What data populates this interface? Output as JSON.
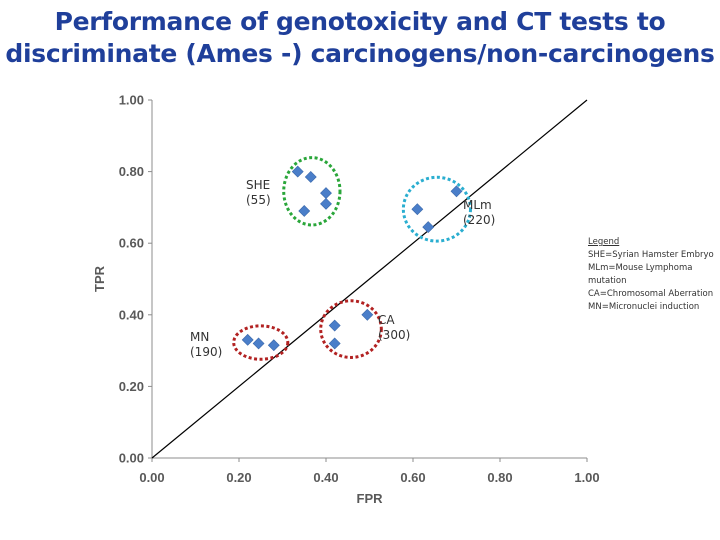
{
  "title": {
    "line1": "Performance of genotoxicity and CT tests to",
    "line2": "discriminate (Ames -) carcinogens/non-carcinogens"
  },
  "chart_data": {
    "type": "scatter",
    "title": "Performance of genotoxicity and CT tests to discriminate (Ames -) carcinogens/non-carcinogens",
    "xlabel": "FPR",
    "ylabel": "TPR",
    "xlim": [
      0,
      1
    ],
    "ylim": [
      0,
      1
    ],
    "xticks": [
      "0.00",
      "0.20",
      "0.40",
      "0.60",
      "0.80",
      "1.00"
    ],
    "yticks": [
      "0.00",
      "0.20",
      "0.40",
      "0.60",
      "0.80",
      "1.00"
    ],
    "grid": false,
    "marker_color": "#4a7ec9",
    "reference_line": {
      "from": [
        0,
        0
      ],
      "to": [
        1,
        1
      ]
    },
    "clusters": [
      {
        "label_line1": "SHE",
        "label_line2": "(55)",
        "ellipse_color": "#2aa63a",
        "points": [
          [
            0.335,
            0.8
          ],
          [
            0.365,
            0.785
          ],
          [
            0.4,
            0.74
          ],
          [
            0.4,
            0.71
          ],
          [
            0.35,
            0.69
          ]
        ]
      },
      {
        "label_line1": "MLm",
        "label_line2": "(220)",
        "ellipse_color": "#2aaed0",
        "points": [
          [
            0.7,
            0.745
          ],
          [
            0.61,
            0.695
          ],
          [
            0.635,
            0.645
          ]
        ]
      },
      {
        "label_line1": "CA",
        "label_line2": "(300)",
        "ellipse_color": "#b22222",
        "points": [
          [
            0.495,
            0.4
          ],
          [
            0.42,
            0.37
          ],
          [
            0.42,
            0.32
          ]
        ]
      },
      {
        "label_line1": "MN",
        "label_line2": "(190)",
        "ellipse_color": "#b22222",
        "points": [
          [
            0.22,
            0.33
          ],
          [
            0.245,
            0.32
          ],
          [
            0.28,
            0.315
          ]
        ]
      }
    ],
    "legend": {
      "placement": "right",
      "title": "Legend",
      "entries": [
        "SHE=Syrian Hamster Embryo",
        "MLm=Mouse Lymphoma mutation",
        "CA=Chromosomal Aberration",
        "MN=Micronuclei induction"
      ]
    }
  }
}
